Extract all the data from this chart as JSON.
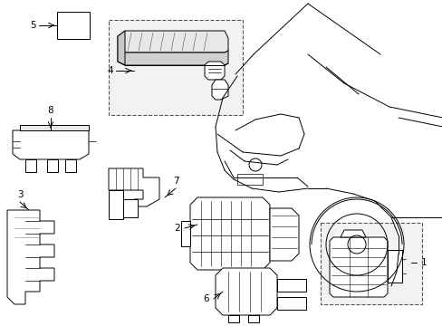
{
  "background_color": "#ffffff",
  "line_color": "#000000",
  "line_width": 0.7,
  "fig_width": 4.89,
  "fig_height": 3.6,
  "dpi": 100,
  "label_fontsize": 7.5,
  "comp_facecolor": "#ffffff",
  "inset_facecolor": "#f2f2f2",
  "inset_edgecolor": "#555555"
}
